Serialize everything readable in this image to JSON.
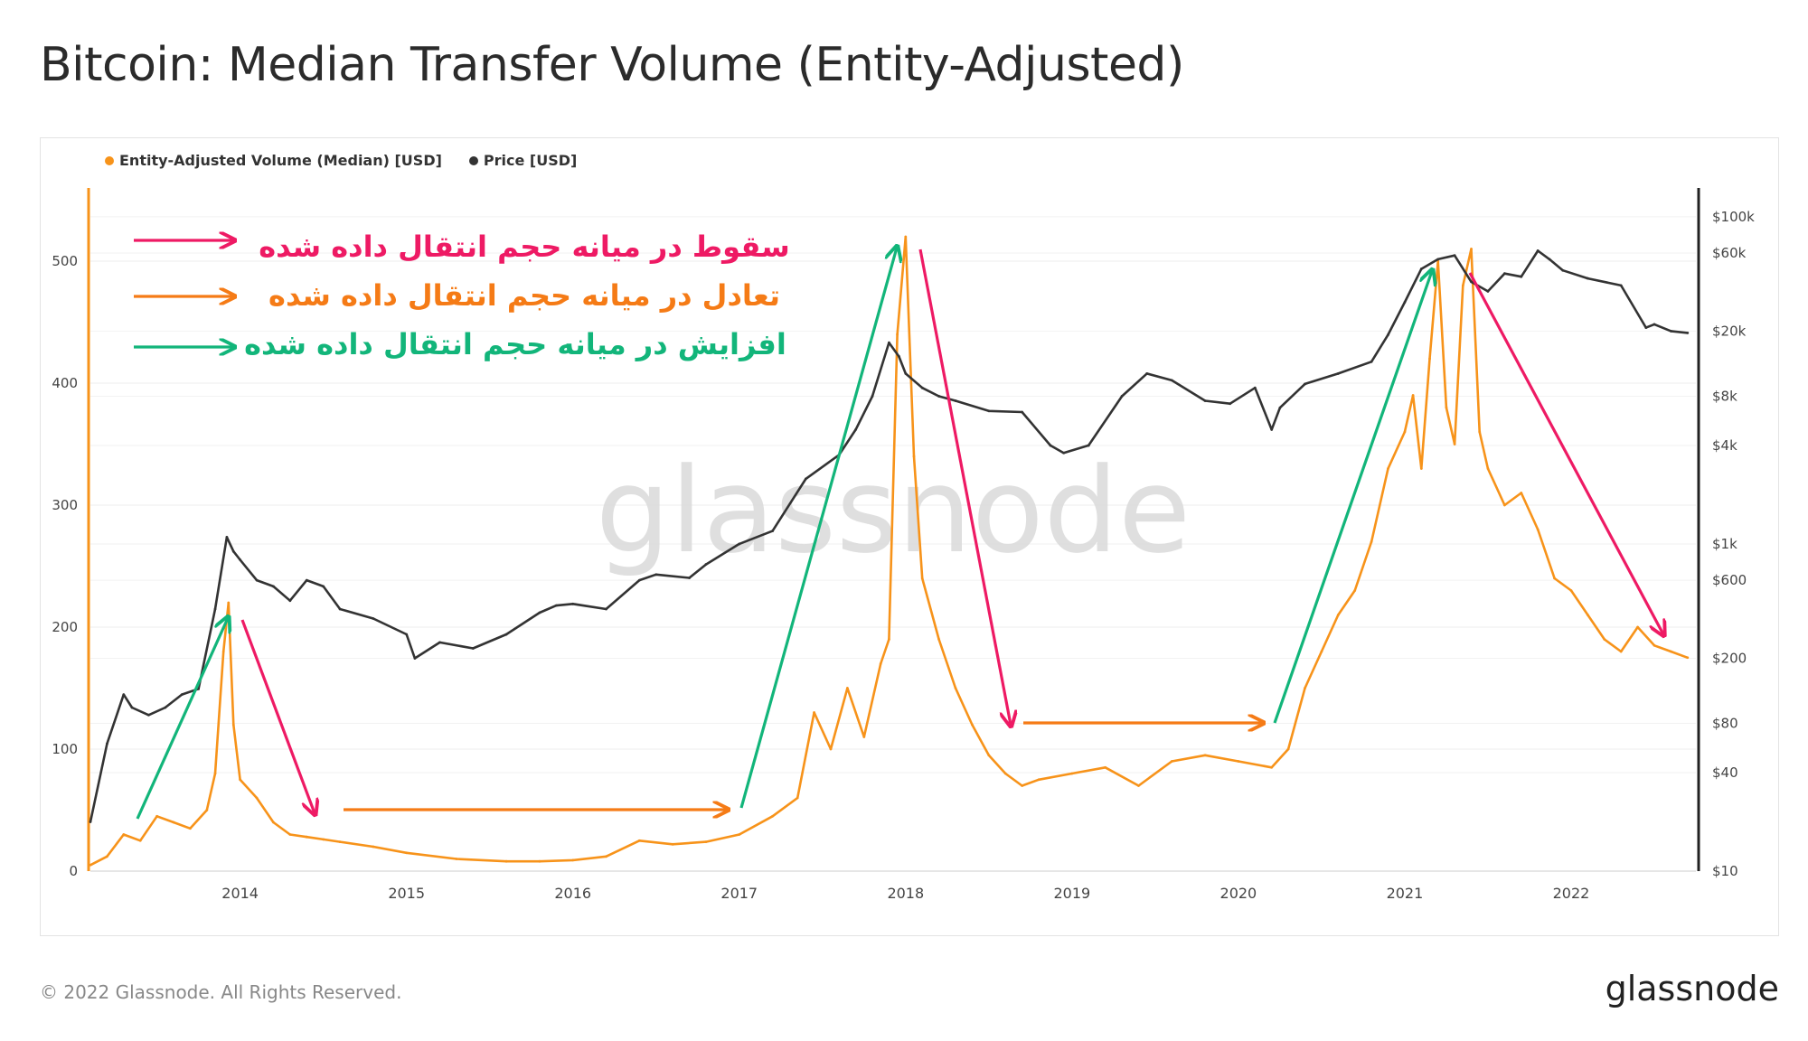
{
  "title": "Bitcoin: Median Transfer Volume (Entity-Adjusted)",
  "footer": {
    "copyright": "© 2022 Glassnode. All Rights Reserved.",
    "logo": "glassnode"
  },
  "watermark": "glassnode",
  "legend": [
    {
      "label": "Entity-Adjusted Volume (Median) [USD]",
      "color": "#f7931a"
    },
    {
      "label": "Price [USD]",
      "color": "#333333"
    }
  ],
  "annotations": {
    "fall": "سقوط  در میانه حجم انتقال داده شده",
    "balance": "تعادل در میانه حجم انتقال داده شده",
    "rise": "افزایش در میانه حجم انتقال داده شده",
    "colors": {
      "fall": "#ee1a64",
      "balance": "#f57b16",
      "rise": "#12b57a"
    }
  },
  "chart_data": {
    "type": "line",
    "x_ticks": [
      "2014",
      "2015",
      "2016",
      "2017",
      "2018",
      "2019",
      "2020",
      "2021",
      "2022"
    ],
    "left_axis": {
      "ticks": [
        0,
        100,
        200,
        300,
        400,
        500
      ],
      "ylim": [
        0,
        560
      ]
    },
    "right_axis": {
      "scale": "log",
      "ticks": [
        "$10",
        "$40",
        "$80",
        "$200",
        "$600",
        "$1k",
        "$4k",
        "$8k",
        "$20k",
        "$60k",
        "$100k"
      ],
      "tick_values": [
        10,
        40,
        80,
        200,
        600,
        1000,
        4000,
        8000,
        20000,
        60000,
        100000
      ]
    },
    "grid": true,
    "series": [
      {
        "name": "Entity-Adjusted Volume (Median) [USD]",
        "axis": "left",
        "color": "#f7931a",
        "x": [
          2013.1,
          2013.2,
          2013.3,
          2013.4,
          2013.5,
          2013.6,
          2013.7,
          2013.8,
          2013.85,
          2013.9,
          2013.93,
          2013.96,
          2014.0,
          2014.1,
          2014.2,
          2014.3,
          2014.4,
          2014.5,
          2014.6,
          2014.8,
          2015.0,
          2015.3,
          2015.6,
          2015.8,
          2016.0,
          2016.2,
          2016.4,
          2016.6,
          2016.8,
          2017.0,
          2017.2,
          2017.35,
          2017.45,
          2017.55,
          2017.65,
          2017.75,
          2017.85,
          2017.9,
          2017.95,
          2018.0,
          2018.05,
          2018.1,
          2018.2,
          2018.3,
          2018.4,
          2018.5,
          2018.6,
          2018.7,
          2018.8,
          2019.0,
          2019.2,
          2019.4,
          2019.6,
          2019.8,
          2020.0,
          2020.2,
          2020.3,
          2020.4,
          2020.5,
          2020.6,
          2020.7,
          2020.8,
          2020.9,
          2021.0,
          2021.05,
          2021.1,
          2021.15,
          2021.2,
          2021.25,
          2021.3,
          2021.35,
          2021.4,
          2021.45,
          2021.5,
          2021.6,
          2021.7,
          2021.8,
          2021.9,
          2022.0,
          2022.1,
          2022.2,
          2022.3,
          2022.4,
          2022.5,
          2022.6,
          2022.7
        ],
        "y": [
          5,
          12,
          30,
          25,
          45,
          40,
          35,
          50,
          80,
          180,
          220,
          120,
          75,
          60,
          40,
          30,
          28,
          26,
          24,
          20,
          15,
          10,
          8,
          8,
          9,
          12,
          25,
          22,
          24,
          30,
          45,
          60,
          130,
          100,
          150,
          110,
          170,
          190,
          440,
          520,
          340,
          240,
          190,
          150,
          120,
          95,
          80,
          70,
          75,
          80,
          85,
          70,
          90,
          95,
          90,
          85,
          100,
          150,
          180,
          210,
          230,
          270,
          330,
          360,
          390,
          330,
          420,
          500,
          380,
          350,
          480,
          510,
          360,
          330,
          300,
          310,
          280,
          240,
          230,
          210,
          190,
          180,
          200,
          185,
          180,
          175
        ]
      },
      {
        "name": "Price [USD]",
        "axis": "right",
        "color": "#333333",
        "x": [
          2013.1,
          2013.2,
          2013.3,
          2013.35,
          2013.45,
          2013.55,
          2013.65,
          2013.75,
          2013.85,
          2013.92,
          2013.96,
          2014.0,
          2014.1,
          2014.2,
          2014.3,
          2014.4,
          2014.5,
          2014.6,
          2014.8,
          2015.0,
          2015.05,
          2015.2,
          2015.4,
          2015.6,
          2015.8,
          2015.9,
          2016.0,
          2016.2,
          2016.4,
          2016.5,
          2016.7,
          2016.8,
          2017.0,
          2017.2,
          2017.4,
          2017.6,
          2017.7,
          2017.8,
          2017.9,
          2017.96,
          2018.0,
          2018.1,
          2018.2,
          2018.3,
          2018.5,
          2018.7,
          2018.87,
          2018.95,
          2019.1,
          2019.3,
          2019.45,
          2019.6,
          2019.8,
          2019.95,
          2020.1,
          2020.2,
          2020.25,
          2020.4,
          2020.6,
          2020.8,
          2020.9,
          2021.0,
          2021.1,
          2021.2,
          2021.3,
          2021.4,
          2021.5,
          2021.6,
          2021.7,
          2021.8,
          2021.87,
          2021.95,
          2022.1,
          2022.3,
          2022.45,
          2022.5,
          2022.6,
          2022.7
        ],
        "y": [
          20,
          60,
          120,
          100,
          90,
          100,
          120,
          130,
          400,
          1100,
          900,
          800,
          600,
          550,
          450,
          600,
          550,
          400,
          350,
          280,
          200,
          250,
          230,
          280,
          380,
          420,
          430,
          400,
          600,
          650,
          620,
          750,
          1000,
          1200,
          2500,
          3500,
          5000,
          8000,
          17000,
          14000,
          11000,
          9000,
          8000,
          7500,
          6500,
          6400,
          4000,
          3600,
          4000,
          8000,
          11000,
          10000,
          7500,
          7200,
          9000,
          5000,
          6800,
          9500,
          11000,
          13000,
          19000,
          30000,
          48000,
          55000,
          58000,
          40000,
          35000,
          45000,
          43000,
          62000,
          55000,
          47000,
          42000,
          38000,
          21000,
          22000,
          20000,
          19500
        ]
      }
    ]
  }
}
